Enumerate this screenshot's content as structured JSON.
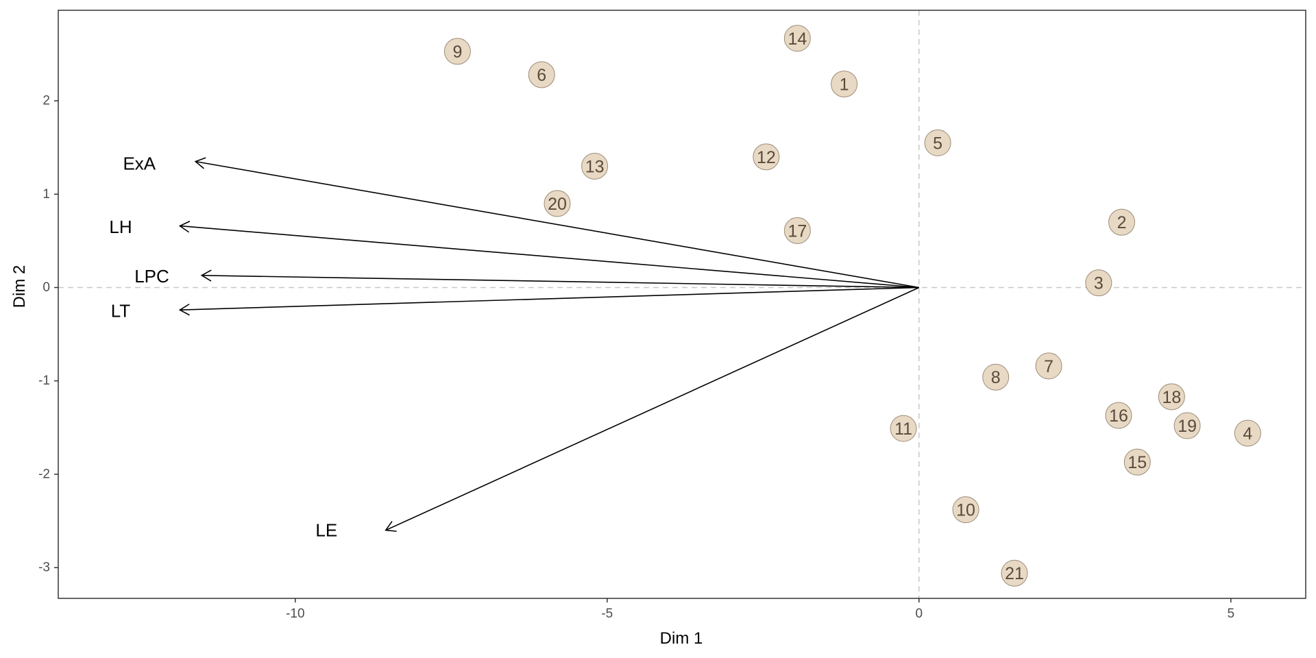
{
  "chart_data": {
    "type": "scatter",
    "title": "",
    "xlabel": "Dim 1",
    "ylabel": "Dim 2",
    "xlim": [
      -13.8,
      6.2
    ],
    "ylim": [
      -3.33,
      2.97
    ],
    "xticks": [
      -10,
      -5,
      0,
      5
    ],
    "yticks": [
      -3,
      -2,
      -1,
      0,
      1,
      2
    ],
    "xtick_labels": [
      "-10",
      "-5",
      "0",
      "5"
    ],
    "ytick_labels": [
      "-3",
      "-2",
      "-1",
      "0",
      "1",
      "2"
    ],
    "grid": false,
    "reference_lines": {
      "x": 0,
      "y": 0
    },
    "colors": {
      "point_fill": "#e8d9c4",
      "point_stroke": "#9c8c78",
      "point_text": "#5a4a3a",
      "arrow": "#000000",
      "refline": "#c8c8c8",
      "panel_border": "#333333"
    },
    "points": [
      {
        "label": "1",
        "x": -1.2,
        "y": 2.18
      },
      {
        "label": "2",
        "x": 3.25,
        "y": 0.7
      },
      {
        "label": "3",
        "x": 2.88,
        "y": 0.05
      },
      {
        "label": "4",
        "x": 5.27,
        "y": -1.56
      },
      {
        "label": "5",
        "x": 0.3,
        "y": 1.55
      },
      {
        "label": "6",
        "x": -6.05,
        "y": 2.28
      },
      {
        "label": "7",
        "x": 2.08,
        "y": -0.84
      },
      {
        "label": "8",
        "x": 1.23,
        "y": -0.96
      },
      {
        "label": "9",
        "x": -7.4,
        "y": 2.53
      },
      {
        "label": "10",
        "x": 0.75,
        "y": -2.38
      },
      {
        "label": "11",
        "x": -0.25,
        "y": -1.51
      },
      {
        "label": "12",
        "x": -2.45,
        "y": 1.4
      },
      {
        "label": "13",
        "x": -5.2,
        "y": 1.3
      },
      {
        "label": "14",
        "x": -1.95,
        "y": 2.67
      },
      {
        "label": "15",
        "x": 3.5,
        "y": -1.87
      },
      {
        "label": "16",
        "x": 3.2,
        "y": -1.37
      },
      {
        "label": "17",
        "x": -1.95,
        "y": 0.61
      },
      {
        "label": "18",
        "x": 4.05,
        "y": -1.17
      },
      {
        "label": "19",
        "x": 4.3,
        "y": -1.48
      },
      {
        "label": "20",
        "x": -5.8,
        "y": 0.9
      },
      {
        "label": "21",
        "x": 1.53,
        "y": -3.06
      }
    ],
    "vectors": [
      {
        "label": "ExA",
        "x": -11.6,
        "y": 1.35,
        "label_x": -12.5,
        "label_y": 1.33
      },
      {
        "label": "LH",
        "x": -11.85,
        "y": 0.66,
        "label_x": -12.8,
        "label_y": 0.65
      },
      {
        "label": "LPC",
        "x": -11.5,
        "y": 0.13,
        "label_x": -12.3,
        "label_y": 0.12
      },
      {
        "label": "LT",
        "x": -11.85,
        "y": -0.24,
        "label_x": -12.8,
        "label_y": -0.25
      },
      {
        "label": "LE",
        "x": -8.55,
        "y": -2.6,
        "label_x": -9.5,
        "label_y": -2.6
      }
    ]
  }
}
